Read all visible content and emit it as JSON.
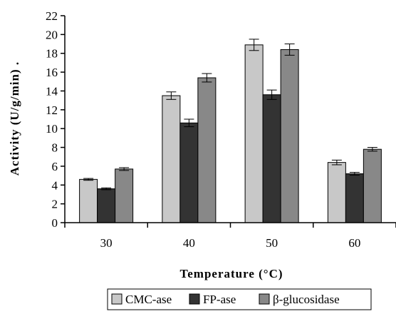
{
  "chart_data": {
    "type": "bar",
    "categories": [
      "30",
      "40",
      "50",
      "60"
    ],
    "series": [
      {
        "name": "CMC-ase",
        "values": [
          4.6,
          13.5,
          18.9,
          6.4
        ],
        "errors": [
          0.1,
          0.4,
          0.6,
          0.25
        ],
        "color": "#c8c8c8"
      },
      {
        "name": "FP-ase",
        "values": [
          3.6,
          10.6,
          13.6,
          5.2
        ],
        "errors": [
          0.1,
          0.4,
          0.5,
          0.15
        ],
        "color": "#333333"
      },
      {
        "name": "β-glucosidase",
        "values": [
          5.7,
          15.4,
          18.4,
          7.8
        ],
        "errors": [
          0.15,
          0.45,
          0.6,
          0.2
        ],
        "color": "#888888"
      }
    ],
    "xlabel": "Temperature (°C)",
    "ylabel": "Activity (U/g/min) .",
    "ylim": [
      0,
      22
    ],
    "yticks": [
      0,
      2,
      4,
      6,
      8,
      10,
      12,
      14,
      16,
      18,
      20,
      22
    ],
    "grid": false,
    "legend": "bottom"
  }
}
